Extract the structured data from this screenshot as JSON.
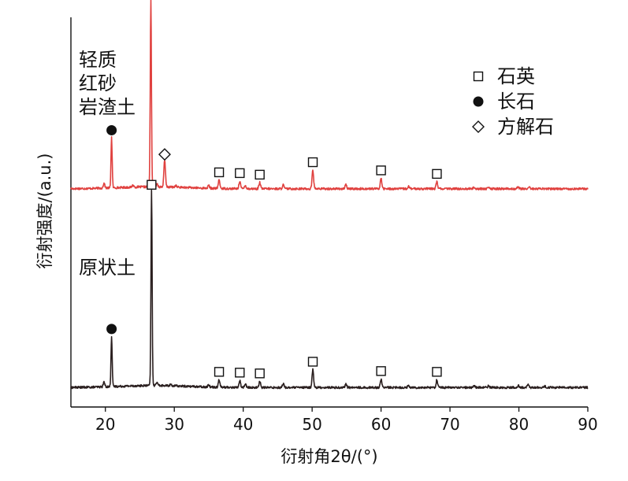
{
  "chart_data": {
    "type": "line",
    "xlabel": "衍射角2θ/(°)",
    "ylabel": "衍射强度/(a.u.)",
    "xlim": [
      15,
      90
    ],
    "ylim": [
      0,
      100
    ],
    "xticks": [
      20,
      30,
      40,
      50,
      60,
      70,
      80,
      90
    ],
    "grid": false,
    "series": [
      {
        "name": "轻质红砂岩渣土",
        "color": "#e0413f",
        "label_lines": [
          "轻质",
          "红砂",
          "岩渣土"
        ],
        "baseline": 56,
        "peaks": [
          {
            "x": 19.8,
            "h": 1.2
          },
          {
            "x": 20.9,
            "h": 13.0
          },
          {
            "x": 24.0,
            "h": 0.5
          },
          {
            "x": 26.6,
            "h": 48.0
          },
          {
            "x": 27.5,
            "h": 0.8
          },
          {
            "x": 28.6,
            "h": 6.8
          },
          {
            "x": 30.2,
            "h": 0.4
          },
          {
            "x": 35.0,
            "h": 0.7
          },
          {
            "x": 36.5,
            "h": 2.2
          },
          {
            "x": 39.5,
            "h": 2.0
          },
          {
            "x": 40.3,
            "h": 0.9
          },
          {
            "x": 42.4,
            "h": 1.6
          },
          {
            "x": 45.8,
            "h": 1.0
          },
          {
            "x": 50.1,
            "h": 4.8
          },
          {
            "x": 54.9,
            "h": 1.0
          },
          {
            "x": 60.0,
            "h": 2.7
          },
          {
            "x": 64.0,
            "h": 0.6
          },
          {
            "x": 68.1,
            "h": 1.8
          },
          {
            "x": 73.5,
            "h": 0.4
          },
          {
            "x": 75.6,
            "h": 0.3
          },
          {
            "x": 79.9,
            "h": 0.5
          },
          {
            "x": 81.5,
            "h": 0.5
          }
        ],
        "markers": [
          {
            "x": 20.9,
            "phase": "长石"
          },
          {
            "x": 26.6,
            "phase": "石英"
          },
          {
            "x": 28.6,
            "phase": "方解石"
          },
          {
            "x": 36.5,
            "phase": "石英"
          },
          {
            "x": 39.5,
            "phase": "石英"
          },
          {
            "x": 42.4,
            "phase": "石英"
          },
          {
            "x": 50.1,
            "phase": "石英"
          },
          {
            "x": 60.0,
            "phase": "石英"
          },
          {
            "x": 68.1,
            "phase": "石英"
          }
        ]
      },
      {
        "name": "原状土",
        "color": "#2a1f1f",
        "label_lines": [
          "原状土"
        ],
        "baseline": 5,
        "peaks": [
          {
            "x": 19.8,
            "h": 1.2
          },
          {
            "x": 20.9,
            "h": 13.0
          },
          {
            "x": 26.7,
            "h": 50.0
          },
          {
            "x": 27.5,
            "h": 1.0
          },
          {
            "x": 29.5,
            "h": 0.4
          },
          {
            "x": 35.0,
            "h": 0.6
          },
          {
            "x": 36.5,
            "h": 2.0
          },
          {
            "x": 39.5,
            "h": 1.8
          },
          {
            "x": 40.3,
            "h": 0.9
          },
          {
            "x": 42.4,
            "h": 1.6
          },
          {
            "x": 45.8,
            "h": 1.0
          },
          {
            "x": 50.1,
            "h": 4.6
          },
          {
            "x": 54.9,
            "h": 1.0
          },
          {
            "x": 60.0,
            "h": 2.2
          },
          {
            "x": 64.0,
            "h": 0.6
          },
          {
            "x": 68.1,
            "h": 2.0
          },
          {
            "x": 73.5,
            "h": 0.5
          },
          {
            "x": 75.6,
            "h": 0.4
          },
          {
            "x": 79.9,
            "h": 0.5
          },
          {
            "x": 81.3,
            "h": 0.8
          },
          {
            "x": 83.8,
            "h": 0.3
          }
        ],
        "markers": [
          {
            "x": 20.9,
            "phase": "长石"
          },
          {
            "x": 26.7,
            "phase": "石英"
          },
          {
            "x": 36.5,
            "phase": "石英"
          },
          {
            "x": 39.5,
            "phase": "石英"
          },
          {
            "x": 42.4,
            "phase": "石英"
          },
          {
            "x": 50.1,
            "phase": "石英"
          },
          {
            "x": 60.0,
            "phase": "石英"
          },
          {
            "x": 68.1,
            "phase": "石英"
          }
        ]
      }
    ],
    "legend": {
      "position": "top-right",
      "entries": [
        {
          "label": "石英",
          "symbol": "square"
        },
        {
          "label": "长石",
          "symbol": "circle"
        },
        {
          "label": "方解石",
          "symbol": "diamond"
        }
      ]
    }
  }
}
